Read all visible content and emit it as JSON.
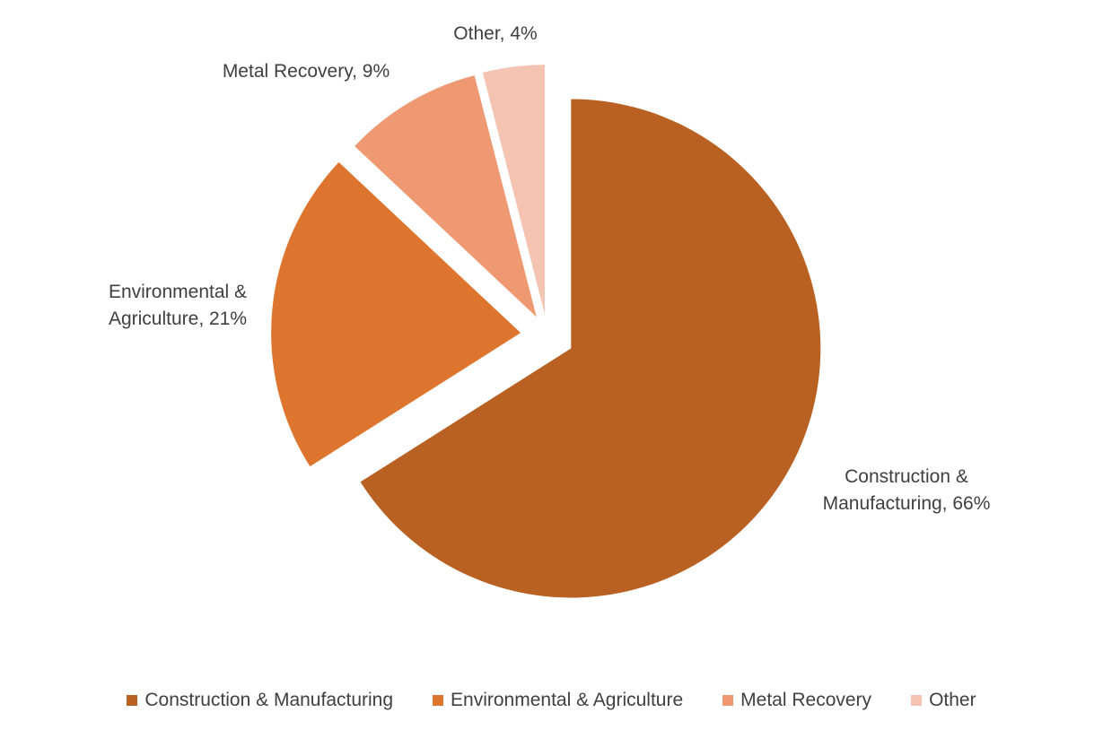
{
  "chart_data": {
    "type": "pie",
    "title": "",
    "slices": [
      {
        "name": "Construction & Manufacturing",
        "value": 66,
        "label_lines": [
          "Construction &",
          "Manufacturing, 66%"
        ],
        "color": "#B96122"
      },
      {
        "name": "Environmental & Agriculture",
        "value": 21,
        "label_lines": [
          "Environmental &",
          "Agriculture, 21%"
        ],
        "color": "#DE752E"
      },
      {
        "name": "Metal Recovery",
        "value": 9,
        "label_lines": [
          "Metal Recovery, 9%"
        ],
        "color": "#EF9972"
      },
      {
        "name": "Other",
        "value": 4,
        "label_lines": [
          "Other, 4%"
        ],
        "color": "#F5C3B2"
      }
    ],
    "legend": {
      "position": "bottom",
      "entries": [
        "Construction & Manufacturing",
        "Environmental & Agriculture",
        "Metal Recovery",
        "Other"
      ]
    },
    "exploded": true
  }
}
